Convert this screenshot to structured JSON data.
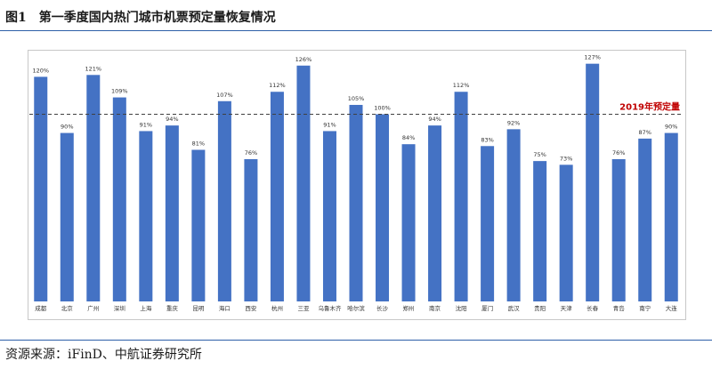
{
  "header": {
    "title": "图1　第一季度国内热门城市机票预定量恢复情况"
  },
  "footer": {
    "source": "资源来源：iFinD、中航证券研究所"
  },
  "chart_data": {
    "type": "bar",
    "title": "",
    "xlabel": "",
    "ylabel": "",
    "ylim": [
      0,
      130
    ],
    "grid": false,
    "bar_color": "#4472c4",
    "categories": [
      "成都",
      "北京",
      "广州",
      "深圳",
      "上海",
      "重庆",
      "昆明",
      "海口",
      "西安",
      "杭州",
      "三亚",
      "乌鲁木齐",
      "哈尔滨",
      "长沙",
      "郑州",
      "南京",
      "沈阳",
      "厦门",
      "武汉",
      "贵阳",
      "天津",
      "长春",
      "青岛",
      "南宁",
      "大连"
    ],
    "values": [
      120,
      90,
      121,
      109,
      91,
      94,
      81,
      107,
      76,
      112,
      126,
      91,
      105,
      100,
      84,
      94,
      112,
      83,
      92,
      75,
      73,
      127,
      76,
      87,
      90
    ],
    "value_labels": [
      "120%",
      "90%",
      "121%",
      "109%",
      "91%",
      "94%",
      "81%",
      "107%",
      "76%",
      "112%",
      "126%",
      "91%",
      "105%",
      "100%",
      "84%",
      "94%",
      "112%",
      "83%",
      "92%",
      "75%",
      "73%",
      "127%",
      "76%",
      "87%",
      "90%"
    ],
    "reference_line": {
      "value": 100,
      "label": "2019年预定量",
      "color": "#c00000",
      "style": "dashed"
    }
  }
}
